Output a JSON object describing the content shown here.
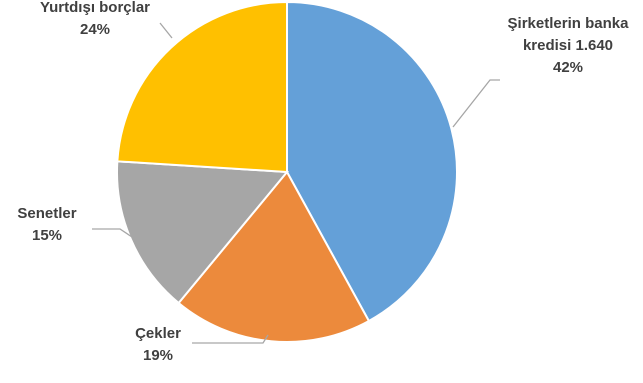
{
  "chart_data": {
    "type": "pie",
    "title": "",
    "slices": [
      {
        "label_lines": [
          "Şirketlerin banka",
          "kredisi 1.640"
        ],
        "percent_label": "42%",
        "value": 42,
        "color": "#64A0D8"
      },
      {
        "label_lines": [
          "Çekler"
        ],
        "percent_label": "19%",
        "value": 19,
        "color": "#EC8A3C"
      },
      {
        "label_lines": [
          "Senetler"
        ],
        "percent_label": "15%",
        "value": 15,
        "color": "#A6A6A6"
      },
      {
        "label_lines": [
          "Yurtdışı borçlar"
        ],
        "percent_label": "24%",
        "value": 24,
        "color": "#FFC000"
      }
    ],
    "start_angle_deg": 0,
    "direction": "clockwise",
    "leader_line_color": "#A6A6A6"
  }
}
